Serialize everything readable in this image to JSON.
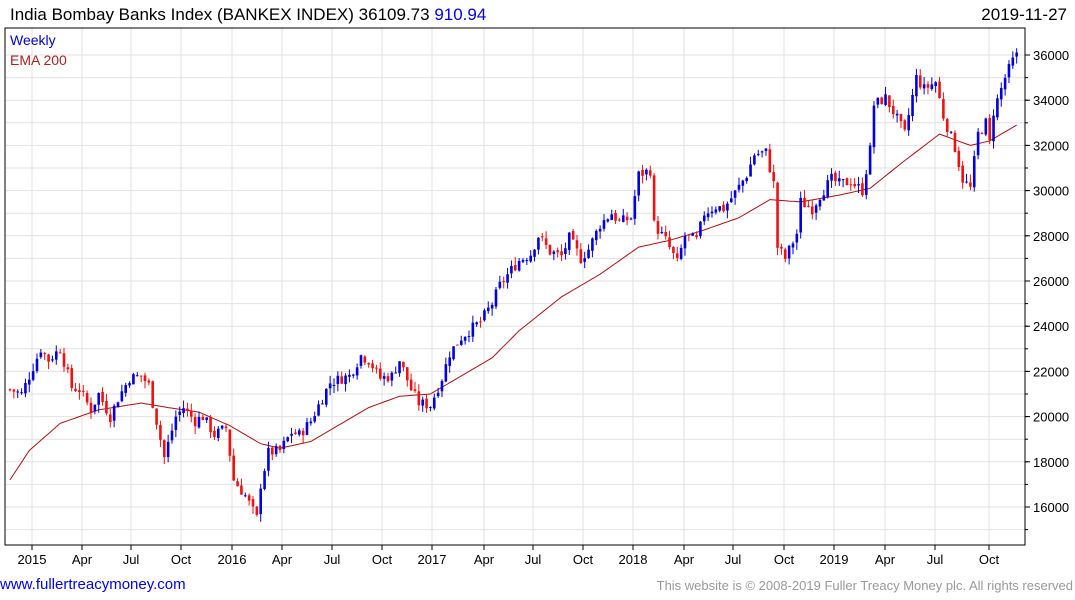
{
  "header": {
    "title": "India Bombay Banks Index (BANKEX INDEX)",
    "last": "36109.73",
    "change": "910.94",
    "date": "2019-11-27"
  },
  "legend": {
    "period": "Weekly",
    "ema": "EMA 200"
  },
  "footer": {
    "site": "www.fullertreacymoney.com",
    "copyright": "This website is © 2008-2019 Fuller Treacy Money plc. All rights reserved"
  },
  "colors": {
    "up": "#0000dd",
    "down": "#ee1111",
    "ema": "#aa1111"
  },
  "chart_data": {
    "type": "candlestick",
    "title": "India Bombay Banks Index (BANKEX INDEX)",
    "period": "weekly",
    "ylim": [
      14500,
      36800
    ],
    "y_ticks": [
      16000,
      18000,
      20000,
      22000,
      24000,
      26000,
      28000,
      30000,
      32000,
      34000,
      36000
    ],
    "x_ticks": [
      "2015",
      "Apr",
      "Jul",
      "Oct",
      "2016",
      "Apr",
      "Jul",
      "Oct",
      "2017",
      "Apr",
      "Jul",
      "Oct",
      "2018",
      "Apr",
      "Jul",
      "Oct",
      "2019",
      "Apr",
      "Jul",
      "Oct"
    ],
    "weeks_total": 261,
    "close_keypoints": [
      [
        0,
        21200
      ],
      [
        3,
        21000
      ],
      [
        5,
        21800
      ],
      [
        8,
        23000
      ],
      [
        10,
        22500
      ],
      [
        13,
        23000
      ],
      [
        16,
        21300
      ],
      [
        18,
        21200
      ],
      [
        21,
        20300
      ],
      [
        23,
        21000
      ],
      [
        26,
        20000
      ],
      [
        28,
        20800
      ],
      [
        31,
        21700
      ],
      [
        34,
        21800
      ],
      [
        36,
        21400
      ],
      [
        39,
        19000
      ],
      [
        40,
        18200
      ],
      [
        43,
        20000
      ],
      [
        45,
        20400
      ],
      [
        48,
        19800
      ],
      [
        50,
        20000
      ],
      [
        53,
        19200
      ],
      [
        56,
        19500
      ],
      [
        58,
        17200
      ],
      [
        61,
        16500
      ],
      [
        64,
        15500
      ],
      [
        65,
        17000
      ],
      [
        67,
        18400
      ],
      [
        70,
        18500
      ],
      [
        73,
        19300
      ],
      [
        75,
        19200
      ],
      [
        78,
        19800
      ],
      [
        80,
        20500
      ],
      [
        83,
        21500
      ],
      [
        86,
        21700
      ],
      [
        88,
        21800
      ],
      [
        91,
        22700
      ],
      [
        93,
        22500
      ],
      [
        96,
        21700
      ],
      [
        99,
        21800
      ],
      [
        101,
        22500
      ],
      [
        104,
        21200
      ],
      [
        106,
        20600
      ],
      [
        109,
        20500
      ],
      [
        112,
        21700
      ],
      [
        114,
        22800
      ],
      [
        117,
        23500
      ],
      [
        119,
        23800
      ],
      [
        122,
        24200
      ],
      [
        125,
        25000
      ],
      [
        127,
        25800
      ],
      [
        130,
        26500
      ],
      [
        132,
        26900
      ],
      [
        135,
        27200
      ],
      [
        137,
        28000
      ],
      [
        140,
        27300
      ],
      [
        143,
        27100
      ],
      [
        145,
        27900
      ],
      [
        148,
        27000
      ],
      [
        150,
        27400
      ],
      [
        153,
        28500
      ],
      [
        156,
        29000
      ],
      [
        158,
        28600
      ],
      [
        161,
        28800
      ],
      [
        163,
        30700
      ],
      [
        166,
        30900
      ],
      [
        167,
        28500
      ],
      [
        170,
        27800
      ],
      [
        173,
        26800
      ],
      [
        175,
        28000
      ],
      [
        178,
        27800
      ],
      [
        180,
        29000
      ],
      [
        183,
        29300
      ],
      [
        185,
        29200
      ],
      [
        188,
        29900
      ],
      [
        191,
        30700
      ],
      [
        193,
        31600
      ],
      [
        196,
        31700
      ],
      [
        198,
        30300
      ],
      [
        199,
        27500
      ],
      [
        201,
        27000
      ],
      [
        204,
        28100
      ],
      [
        205,
        29500
      ],
      [
        208,
        29200
      ],
      [
        210,
        29800
      ],
      [
        213,
        30500
      ],
      [
        215,
        30300
      ],
      [
        218,
        30400
      ],
      [
        221,
        30000
      ],
      [
        223,
        31800
      ],
      [
        224,
        33800
      ],
      [
        227,
        34100
      ],
      [
        229,
        33500
      ],
      [
        232,
        32500
      ],
      [
        235,
        35000
      ],
      [
        237,
        34500
      ],
      [
        240,
        34800
      ],
      [
        242,
        33300
      ],
      [
        245,
        31900
      ],
      [
        247,
        30500
      ],
      [
        249,
        30100
      ],
      [
        251,
        32500
      ],
      [
        253,
        33000
      ],
      [
        254,
        32100
      ],
      [
        255,
        33500
      ],
      [
        258,
        35000
      ],
      [
        261,
        36110
      ]
    ],
    "ema200_keypoints": [
      [
        0,
        17200
      ],
      [
        5,
        18500
      ],
      [
        13,
        19700
      ],
      [
        23,
        20300
      ],
      [
        34,
        20600
      ],
      [
        41,
        20400
      ],
      [
        49,
        20200
      ],
      [
        57,
        19600
      ],
      [
        65,
        18800
      ],
      [
        70,
        18600
      ],
      [
        78,
        18900
      ],
      [
        86,
        19700
      ],
      [
        93,
        20400
      ],
      [
        101,
        20900
      ],
      [
        109,
        21000
      ],
      [
        117,
        21800
      ],
      [
        125,
        22600
      ],
      [
        132,
        23800
      ],
      [
        143,
        25300
      ],
      [
        153,
        26300
      ],
      [
        163,
        27500
      ],
      [
        171,
        27800
      ],
      [
        179,
        28200
      ],
      [
        189,
        28800
      ],
      [
        197,
        29600
      ],
      [
        205,
        29500
      ],
      [
        215,
        29800
      ],
      [
        223,
        30100
      ],
      [
        231,
        31200
      ],
      [
        241,
        32500
      ],
      [
        249,
        32000
      ],
      [
        254,
        32200
      ],
      [
        261,
        32900
      ]
    ]
  }
}
